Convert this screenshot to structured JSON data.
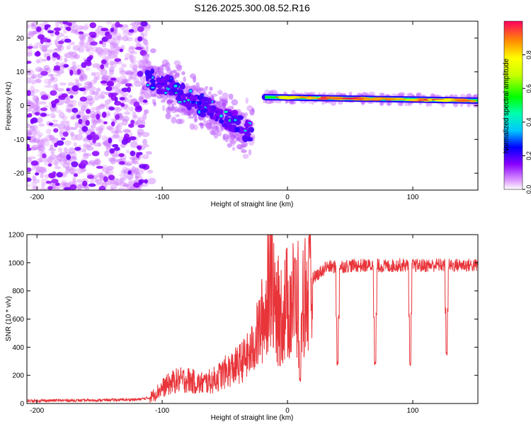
{
  "title": "S126.2025.300.08.52.R16",
  "chart_data": [
    {
      "type": "heatmap",
      "title": "S126.2025.300.08.52.R16",
      "xlabel": "Height of straight line (km)",
      "ylabel": "Frequency (Hz)",
      "xlim": [
        -208,
        152
      ],
      "ylim": [
        -25,
        25
      ],
      "xticks": [
        -200,
        -100,
        0,
        100
      ],
      "yticks": [
        -20,
        -10,
        0,
        10,
        20
      ],
      "colorbar": {
        "label": "Normalized spectral amplitude",
        "range": [
          0,
          1
        ],
        "ticks": [
          "0.0",
          "0.2",
          "0.4",
          "0.6",
          "0.8"
        ],
        "tick_values": [
          0,
          0.2,
          0.4,
          0.6,
          0.8
        ]
      },
      "features": [
        {
          "name": "noise-region",
          "x_range": [
            -208,
            -112
          ],
          "freq_range": [
            -25,
            25
          ],
          "amplitude": 0.1
        },
        {
          "name": "descending-trace",
          "x_start": -112,
          "x_end": -28,
          "freq_start": 9,
          "freq_end": -8,
          "amplitude": 0.3
        },
        {
          "name": "carrier-line",
          "x_start": -18,
          "x_end": 152,
          "freq_start": 2.5,
          "freq_end": 1.5,
          "amplitude": 0.9
        }
      ]
    },
    {
      "type": "line",
      "xlabel": "Height of straight line (km)",
      "ylabel": "SNR (10 * v/v)",
      "xlim": [
        -208,
        152
      ],
      "ylim": [
        0,
        1200
      ],
      "xticks": [
        -200,
        -100,
        0,
        100
      ],
      "yticks": [
        0,
        200,
        400,
        600,
        800,
        1000,
        1200
      ],
      "series": [
        {
          "name": "SNR",
          "color": "#e8353a",
          "x": [
            -208,
            -200,
            -180,
            -160,
            -140,
            -120,
            -110,
            -100,
            -90,
            -80,
            -70,
            -60,
            -50,
            -40,
            -30,
            -25,
            -20,
            -15,
            -10,
            -5,
            0,
            10,
            20,
            30,
            40,
            50,
            60,
            70,
            80,
            90,
            100,
            110,
            120,
            130,
            140,
            152
          ],
          "values": [
            20,
            20,
            22,
            22,
            25,
            28,
            40,
            110,
            160,
            170,
            140,
            160,
            220,
            270,
            350,
            450,
            600,
            700,
            750,
            720,
            800,
            850,
            900,
            970,
            970,
            980,
            980,
            980,
            975,
            985,
            980,
            980,
            985,
            980,
            985,
            980
          ],
          "dips": [
            {
              "x": 10,
              "y": 150
            },
            {
              "x": 40,
              "y": 270
            },
            {
              "x": 70,
              "y": 270
            },
            {
              "x": 98,
              "y": 270
            },
            {
              "x": 127,
              "y": 340
            }
          ]
        }
      ]
    }
  ]
}
